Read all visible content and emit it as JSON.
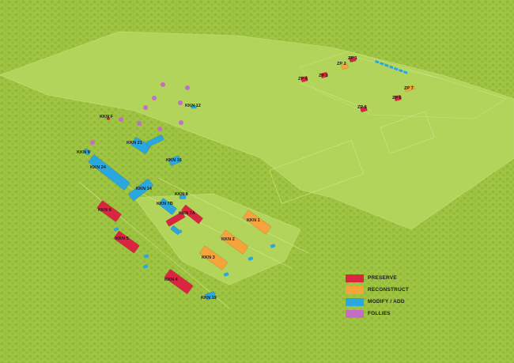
{
  "colors": {
    "preserve": "#da2540",
    "reconstruct": "#f7a33b",
    "modify_add": "#2aa7df",
    "follies": "#c46dc4",
    "forest": "#9cc23f",
    "clearing": "#b3d55b"
  },
  "legend": [
    {
      "key": "preserve",
      "label": "PRESERVE"
    },
    {
      "key": "reconstruct",
      "label": "RECONSTRUCT"
    },
    {
      "key": "modify_add",
      "label": "MODIFY / ADD"
    },
    {
      "key": "follies",
      "label": "FOLLIES"
    }
  ],
  "buildings": [
    {
      "label": "KKN F",
      "category": "preserve"
    },
    {
      "label": "KKN 12",
      "category": "modify_add"
    },
    {
      "label": "KKN 21",
      "category": "modify_add"
    },
    {
      "label": "KKN 9",
      "category": "modify_add"
    },
    {
      "label": "KKN 24",
      "category": "modify_add"
    },
    {
      "label": "KKN 16",
      "category": "modify_add"
    },
    {
      "label": "KKN 14",
      "category": "modify_add"
    },
    {
      "label": "KKN 8",
      "category": "modify_add"
    },
    {
      "label": "KKN 7B",
      "category": "modify_add"
    },
    {
      "label": "KKN 7A",
      "category": "preserve"
    },
    {
      "label": "KKN 6",
      "category": "preserve"
    },
    {
      "label": "KKN 5",
      "category": "preserve"
    },
    {
      "label": "KKN 4",
      "category": "preserve"
    },
    {
      "label": "KKN 19",
      "category": "modify_add"
    },
    {
      "label": "KKN 1",
      "category": "reconstruct"
    },
    {
      "label": "KKN 2",
      "category": "reconstruct"
    },
    {
      "label": "KKN 3",
      "category": "reconstruct"
    },
    {
      "label": "ZP 1",
      "category": "preserve"
    },
    {
      "label": "ZP 2",
      "category": "reconstruct"
    },
    {
      "label": "ZP 3",
      "category": "preserve"
    },
    {
      "label": "ZP 4",
      "category": "preserve"
    },
    {
      "label": "ZP 5",
      "category": "preserve"
    },
    {
      "label": "ZP 6",
      "category": "preserve"
    },
    {
      "label": "ZP 7",
      "category": "reconstruct"
    }
  ]
}
